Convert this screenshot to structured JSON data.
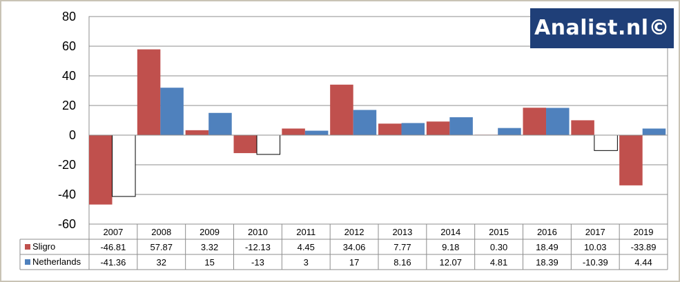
{
  "logo": {
    "text": "Analist.nl©"
  },
  "chart_data": {
    "type": "bar",
    "categories": [
      "2007",
      "2008",
      "2009",
      "2010",
      "2011",
      "2012",
      "2013",
      "2014",
      "2015",
      "2016",
      "2017",
      "2019"
    ],
    "series": [
      {
        "name": "Sligro",
        "color": "#c0504d",
        "values": [
          -46.81,
          57.87,
          3.32,
          -12.13,
          4.45,
          34.06,
          7.77,
          9.18,
          0.3,
          18.49,
          10.03,
          -33.89
        ],
        "labels": [
          "-46.81",
          "57.87",
          "3.32",
          "-12.13",
          "4.45",
          "34.06",
          "7.77",
          "9.18",
          "0.30",
          "18.49",
          "10.03",
          "-33.89"
        ]
      },
      {
        "name": "Netherlands",
        "color": "#4f81bd",
        "invert_negative_color": "#ffffff",
        "values": [
          -41.36,
          32,
          15,
          -13,
          3,
          17,
          8.16,
          12.07,
          4.81,
          18.39,
          -10.39,
          4.44
        ],
        "labels": [
          "-41.36",
          "32",
          "15",
          "-13",
          "3",
          "17",
          "8.16",
          "12.07",
          "4.81",
          "18.39",
          "-10.39",
          "4.44"
        ]
      }
    ],
    "ylim": [
      -60,
      80
    ],
    "yticks": [
      -60,
      -40,
      -20,
      0,
      20,
      40,
      60,
      80
    ],
    "grid": true,
    "legend": "data-table"
  }
}
